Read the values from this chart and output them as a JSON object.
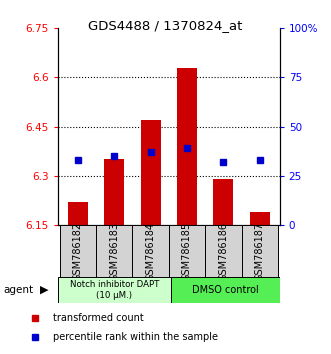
{
  "title": "GDS4488 / 1370824_at",
  "samples": [
    "GSM786182",
    "GSM786183",
    "GSM786184",
    "GSM786185",
    "GSM786186",
    "GSM786187"
  ],
  "red_values": [
    6.22,
    6.35,
    6.47,
    6.63,
    6.29,
    6.19
  ],
  "blue_values_pct": [
    33,
    35,
    37,
    39,
    32,
    33
  ],
  "ylim_left": [
    6.15,
    6.75
  ],
  "ylim_right": [
    0,
    100
  ],
  "yticks_left": [
    6.15,
    6.3,
    6.45,
    6.6,
    6.75
  ],
  "yticks_right": [
    0,
    25,
    50,
    75,
    100
  ],
  "ytick_labels_left": [
    "6.15",
    "6.3",
    "6.45",
    "6.6",
    "6.75"
  ],
  "ytick_labels_right": [
    "0",
    "25",
    "50",
    "75",
    "100%"
  ],
  "bar_base": 6.15,
  "bar_color": "#cc0000",
  "dot_color": "#0000cc",
  "group1_label": "Notch inhibitor DAPT\n(10 μM.)",
  "group2_label": "DMSO control",
  "group1_color": "#ccffcc",
  "group2_color": "#55ee55",
  "legend_bar": "transformed count",
  "legend_dot": "percentile rank within the sample",
  "agent_label": "agent",
  "bar_width": 0.55,
  "dot_size": 5,
  "grid_color": "#000000",
  "grid_lines": [
    6.3,
    6.45,
    6.6
  ],
  "label_fontsize": 7,
  "title_fontsize": 9.5,
  "tick_fontsize": 7.5,
  "legend_fontsize": 7
}
